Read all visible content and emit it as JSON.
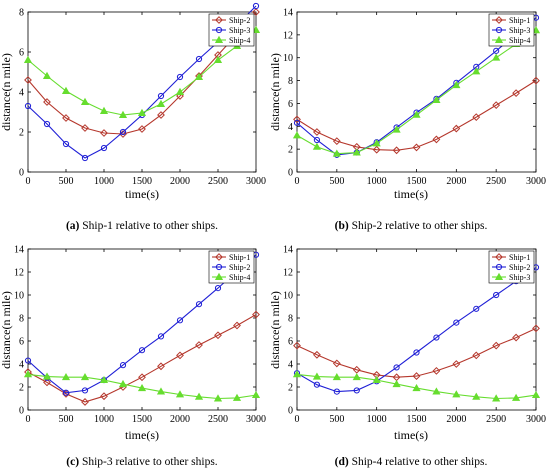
{
  "colors": {
    "red": "#b5372c",
    "blue": "#1f1fd6",
    "green": "#66dd2e"
  },
  "charts": [
    {
      "caption_letter": "(a)",
      "caption_rest": " Ship-1 relative to other ships.",
      "xlabel": "time(s)",
      "ylabel": "distance(n mile)"
    },
    {
      "caption_letter": "(b)",
      "caption_rest": " Ship-2 relative to other ships.",
      "xlabel": "time(s)",
      "ylabel": "distance(n mile)"
    },
    {
      "caption_letter": "(c)",
      "caption_rest": " Ship-3 relative to other ships.",
      "xlabel": "time(s)",
      "ylabel": "distance(n mile)"
    },
    {
      "caption_letter": "(d)",
      "caption_rest": " Ship-4 relative to other ships.",
      "xlabel": "time(s)",
      "ylabel": "distance(n mile)"
    }
  ],
  "chart_data": [
    {
      "type": "line",
      "title": "",
      "xlabel": "time(s)",
      "ylabel": "distance(n mile)",
      "xlim": [
        0,
        3000
      ],
      "ylim": [
        0,
        8
      ],
      "xticks": [
        0,
        500,
        1000,
        1500,
        2000,
        2500,
        3000
      ],
      "yticks": [
        0,
        2,
        4,
        6,
        8
      ],
      "legend": "top-right",
      "grid": false,
      "series": [
        {
          "name": "Ship-2",
          "color": "red",
          "marker": "diamond",
          "x": [
            0,
            250,
            500,
            750,
            1000,
            1250,
            1500,
            1750,
            2000,
            2250,
            2500,
            2750,
            3000
          ],
          "y": [
            4.6,
            3.5,
            2.7,
            2.2,
            1.95,
            1.9,
            2.15,
            2.85,
            3.8,
            4.8,
            5.85,
            6.9,
            8.0
          ]
        },
        {
          "name": "Ship-3",
          "color": "blue",
          "marker": "circle",
          "x": [
            0,
            250,
            500,
            750,
            1000,
            1250,
            1500,
            1750,
            2000,
            2250,
            2500,
            2750,
            3000
          ],
          "y": [
            3.3,
            2.4,
            1.4,
            0.7,
            1.2,
            2.0,
            2.85,
            3.8,
            4.75,
            5.65,
            6.5,
            7.35,
            8.3
          ]
        },
        {
          "name": "Ship-4",
          "color": "green",
          "marker": "triangle",
          "x": [
            0,
            250,
            500,
            750,
            1000,
            1250,
            1500,
            1750,
            2000,
            2250,
            2500,
            2750,
            3000
          ],
          "y": [
            5.6,
            4.8,
            4.05,
            3.5,
            3.05,
            2.85,
            2.95,
            3.4,
            4.0,
            4.75,
            5.6,
            6.3,
            7.1
          ]
        }
      ]
    },
    {
      "type": "line",
      "title": "",
      "xlabel": "time(s)",
      "ylabel": "distance(n mile)",
      "xlim": [
        0,
        3000
      ],
      "ylim": [
        0,
        14
      ],
      "xticks": [
        0,
        500,
        1000,
        1500,
        2000,
        2500,
        3000
      ],
      "yticks": [
        0,
        2,
        4,
        6,
        8,
        10,
        12,
        14
      ],
      "legend": "top-right",
      "grid": false,
      "series": [
        {
          "name": "Ship-1",
          "color": "red",
          "marker": "diamond",
          "x": [
            0,
            250,
            500,
            750,
            1000,
            1250,
            1500,
            1750,
            2000,
            2250,
            2500,
            2750,
            3000
          ],
          "y": [
            4.6,
            3.5,
            2.7,
            2.2,
            1.95,
            1.9,
            2.15,
            2.85,
            3.8,
            4.8,
            5.85,
            6.9,
            8.0
          ]
        },
        {
          "name": "Ship-3",
          "color": "blue",
          "marker": "circle",
          "x": [
            0,
            250,
            500,
            750,
            1000,
            1250,
            1500,
            1750,
            2000,
            2250,
            2500,
            2750,
            3000
          ],
          "y": [
            4.3,
            2.8,
            1.5,
            1.7,
            2.6,
            3.9,
            5.2,
            6.4,
            7.8,
            9.2,
            10.6,
            12.1,
            13.5
          ]
        },
        {
          "name": "Ship-4",
          "color": "green",
          "marker": "triangle",
          "x": [
            0,
            250,
            500,
            750,
            1000,
            1250,
            1500,
            1750,
            2000,
            2250,
            2500,
            2750,
            3000
          ],
          "y": [
            3.2,
            2.2,
            1.6,
            1.7,
            2.5,
            3.7,
            5.0,
            6.3,
            7.6,
            8.8,
            10.0,
            11.2,
            12.4
          ]
        }
      ]
    },
    {
      "type": "line",
      "title": "",
      "xlabel": "time(s)",
      "ylabel": "distance(n mile)",
      "xlim": [
        0,
        3000
      ],
      "ylim": [
        0,
        14
      ],
      "xticks": [
        0,
        500,
        1000,
        1500,
        2000,
        2500,
        3000
      ],
      "yticks": [
        0,
        2,
        4,
        6,
        8,
        10,
        12,
        14
      ],
      "legend": "top-right",
      "grid": false,
      "series": [
        {
          "name": "Ship-1",
          "color": "red",
          "marker": "diamond",
          "x": [
            0,
            250,
            500,
            750,
            1000,
            1250,
            1500,
            1750,
            2000,
            2250,
            2500,
            2750,
            3000
          ],
          "y": [
            3.3,
            2.4,
            1.4,
            0.7,
            1.2,
            2.0,
            2.85,
            3.8,
            4.75,
            5.65,
            6.5,
            7.35,
            8.3
          ]
        },
        {
          "name": "Ship-2",
          "color": "blue",
          "marker": "circle",
          "x": [
            0,
            250,
            500,
            750,
            1000,
            1250,
            1500,
            1750,
            2000,
            2250,
            2500,
            2750,
            3000
          ],
          "y": [
            4.3,
            2.8,
            1.5,
            1.7,
            2.6,
            3.9,
            5.2,
            6.4,
            7.8,
            9.2,
            10.6,
            12.1,
            13.5
          ]
        },
        {
          "name": "Ship-4",
          "color": "green",
          "marker": "triangle",
          "x": [
            0,
            250,
            500,
            750,
            1000,
            1250,
            1500,
            1750,
            2000,
            2250,
            2500,
            2750,
            3000
          ],
          "y": [
            3.1,
            2.9,
            2.85,
            2.85,
            2.6,
            2.25,
            1.9,
            1.6,
            1.35,
            1.15,
            1.0,
            1.05,
            1.3
          ]
        }
      ]
    },
    {
      "type": "line",
      "title": "",
      "xlabel": "time(s)",
      "ylabel": "distance(n mile)",
      "xlim": [
        0,
        3000
      ],
      "ylim": [
        0,
        14
      ],
      "xticks": [
        0,
        500,
        1000,
        1500,
        2000,
        2500,
        3000
      ],
      "yticks": [
        0,
        2,
        4,
        6,
        8,
        10,
        12,
        14
      ],
      "legend": "top-right",
      "grid": false,
      "series": [
        {
          "name": "Ship-1",
          "color": "red",
          "marker": "diamond",
          "x": [
            0,
            250,
            500,
            750,
            1000,
            1250,
            1500,
            1750,
            2000,
            2250,
            2500,
            2750,
            3000
          ],
          "y": [
            5.6,
            4.8,
            4.05,
            3.5,
            3.05,
            2.85,
            2.95,
            3.4,
            4.0,
            4.75,
            5.6,
            6.3,
            7.1
          ]
        },
        {
          "name": "Ship-2",
          "color": "blue",
          "marker": "circle",
          "x": [
            0,
            250,
            500,
            750,
            1000,
            1250,
            1500,
            1750,
            2000,
            2250,
            2500,
            2750,
            3000
          ],
          "y": [
            3.2,
            2.2,
            1.6,
            1.7,
            2.5,
            3.7,
            5.0,
            6.3,
            7.6,
            8.8,
            10.0,
            11.2,
            12.4
          ]
        },
        {
          "name": "Ship-3",
          "color": "green",
          "marker": "triangle",
          "x": [
            0,
            250,
            500,
            750,
            1000,
            1250,
            1500,
            1750,
            2000,
            2250,
            2500,
            2750,
            3000
          ],
          "y": [
            3.1,
            2.9,
            2.85,
            2.85,
            2.6,
            2.25,
            1.9,
            1.6,
            1.35,
            1.15,
            1.0,
            1.05,
            1.3
          ]
        }
      ]
    }
  ]
}
